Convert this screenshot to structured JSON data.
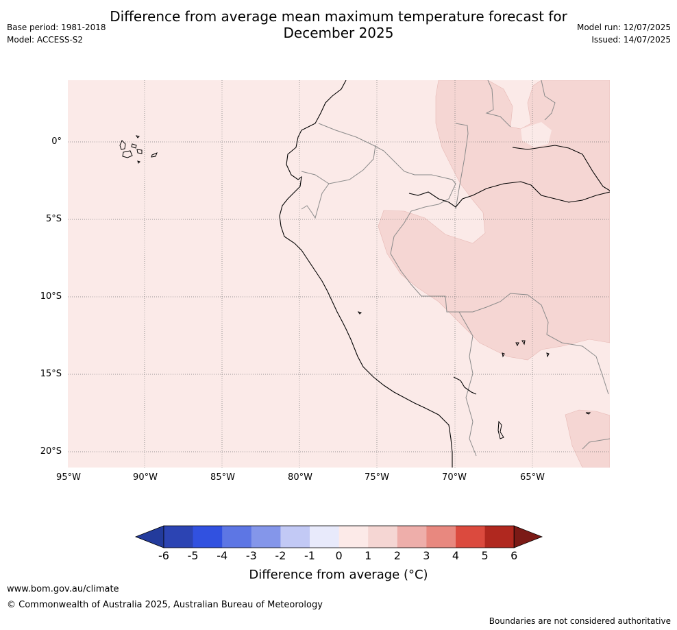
{
  "title_line1": "Difference from average mean maximum temperature forecast for",
  "title_line2": "December 2025",
  "meta_left": [
    "Base period: 1981-2018",
    "Model: ACCESS-S2"
  ],
  "meta_right": [
    "Model run: 12/07/2025",
    "Issued: 14/07/2025"
  ],
  "map": {
    "lat_labels": [
      "0°",
      "5°S",
      "10°S",
      "15°S",
      "20°S"
    ],
    "lon_labels": [
      "95°W",
      "90°W",
      "85°W",
      "80°W",
      "75°W",
      "70°W",
      "65°W"
    ],
    "base_fill_color": "#fbeae8",
    "warm_fill_color": "#f5d6d3"
  },
  "colorbar": {
    "ticks": [
      "-6",
      "-5",
      "-4",
      "-3",
      "-2",
      "-1",
      "0",
      "1",
      "2",
      "3",
      "4",
      "5",
      "6"
    ],
    "colors": [
      "#233b9c",
      "#2c44b3",
      "#3151e0",
      "#5d76e4",
      "#8496ea",
      "#c2c9f5",
      "#e8eafb",
      "#fceae8",
      "#f5d6d3",
      "#eeaeaa",
      "#e8887f",
      "#db4a3e",
      "#b0281f",
      "#7b1a16"
    ],
    "label": "Difference from average (°C)"
  },
  "footer": {
    "url": "www.bom.gov.au/climate",
    "copyright": "© Commonwealth of Australia 2025, Australian Bureau of Meteorology",
    "disclaimer": "Boundaries are not considered authoritative"
  }
}
